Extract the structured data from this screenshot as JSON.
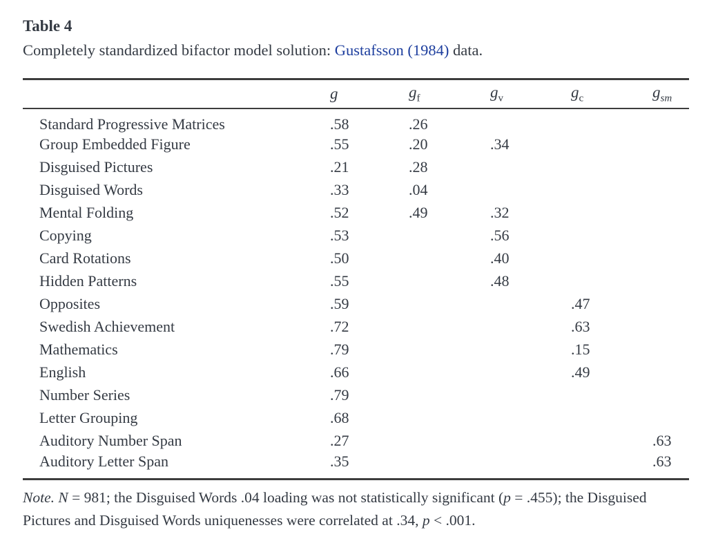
{
  "colors": {
    "text": "#343a43",
    "rule": "#3d3d3d",
    "link": "#1d3e9e",
    "background": "#ffffff"
  },
  "title": "Table 4",
  "caption": {
    "prefix": "Completely standardized bifactor model solution: ",
    "link": "Gustafsson (1984)",
    "suffix": " data."
  },
  "table": {
    "columns": [
      {
        "base": "g",
        "sub": "",
        "sub_italic": false
      },
      {
        "base": "g",
        "sub": "f",
        "sub_italic": false
      },
      {
        "base": "g",
        "sub": "v",
        "sub_italic": false
      },
      {
        "base": "g",
        "sub": "c",
        "sub_italic": false
      },
      {
        "base": "g",
        "sub": "sm",
        "sub_italic": true
      }
    ],
    "rows": [
      {
        "label": "Standard Progressive Matrices",
        "values": [
          ".58",
          ".26",
          "",
          "",
          ""
        ]
      },
      {
        "label": "Group Embedded Figure",
        "values": [
          ".55",
          ".20",
          ".34",
          "",
          ""
        ]
      },
      {
        "label": "Disguised Pictures",
        "values": [
          ".21",
          ".28",
          "",
          "",
          ""
        ]
      },
      {
        "label": "Disguised Words",
        "values": [
          ".33",
          ".04",
          "",
          "",
          ""
        ]
      },
      {
        "label": "Mental Folding",
        "values": [
          ".52",
          ".49",
          ".32",
          "",
          ""
        ]
      },
      {
        "label": "Copying",
        "values": [
          ".53",
          "",
          ".56",
          "",
          ""
        ]
      },
      {
        "label": "Card Rotations",
        "values": [
          ".50",
          "",
          ".40",
          "",
          ""
        ]
      },
      {
        "label": "Hidden Patterns",
        "values": [
          ".55",
          "",
          ".48",
          "",
          ""
        ]
      },
      {
        "label": "Opposites",
        "values": [
          ".59",
          "",
          "",
          ".47",
          ""
        ]
      },
      {
        "label": "Swedish Achievement",
        "values": [
          ".72",
          "",
          "",
          ".63",
          ""
        ]
      },
      {
        "label": "Mathematics",
        "values": [
          ".79",
          "",
          "",
          ".15",
          ""
        ]
      },
      {
        "label": "English",
        "values": [
          ".66",
          "",
          "",
          ".49",
          ""
        ]
      },
      {
        "label": "Number Series",
        "values": [
          ".79",
          "",
          "",
          "",
          ""
        ]
      },
      {
        "label": "Letter Grouping",
        "values": [
          ".68",
          "",
          "",
          "",
          ""
        ]
      },
      {
        "label": "Auditory Number Span",
        "values": [
          ".27",
          "",
          "",
          "",
          ".63"
        ]
      },
      {
        "label": "Auditory Letter Span",
        "values": [
          ".35",
          "",
          "",
          "",
          ".63"
        ]
      }
    ]
  },
  "note": {
    "segments": [
      {
        "text": "Note. N",
        "italic": true
      },
      {
        "text": " = 981; the Disguised Words .04 loading was not statistically significant (",
        "italic": false
      },
      {
        "text": "p",
        "italic": true
      },
      {
        "text": " = .455); the Disguised Pictures and Disguised Words uniquenesses were correlated at .34, ",
        "italic": false
      },
      {
        "text": "p",
        "italic": true
      },
      {
        "text": " < .001.",
        "italic": false
      }
    ]
  }
}
